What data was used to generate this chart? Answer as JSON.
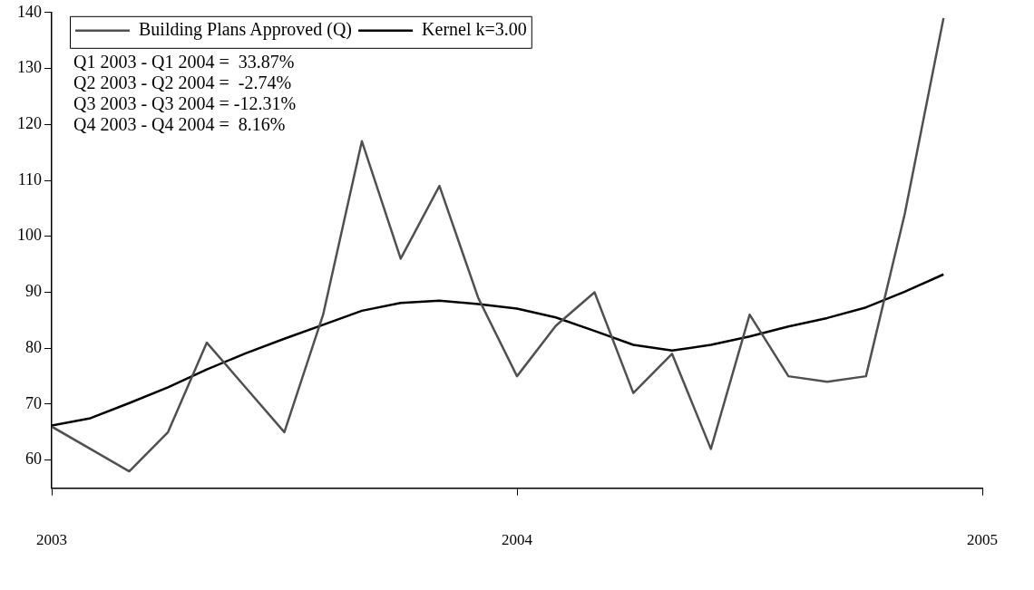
{
  "chart_data": {
    "type": "line",
    "x": [
      "2003-01",
      "2003-02",
      "2003-03",
      "2003-04",
      "2003-05",
      "2003-06",
      "2003-07",
      "2003-08",
      "2003-09",
      "2003-10",
      "2003-11",
      "2003-12",
      "2004-01",
      "2004-02",
      "2004-03",
      "2004-04",
      "2004-05",
      "2004-06",
      "2004-07",
      "2004-08",
      "2004-09",
      "2004-10",
      "2004-11",
      "2004-12"
    ],
    "series": [
      {
        "name": "Building Plans Approved (Q)",
        "color": "#505050",
        "values": [
          66,
          62,
          58,
          65,
          81,
          73,
          65,
          86,
          117,
          96,
          109,
          89,
          75,
          84,
          90,
          72,
          79,
          62,
          86,
          75,
          74,
          75,
          104,
          139
        ]
      },
      {
        "name": "Kernel k=3.00",
        "color": "#000000",
        "values": [
          66.2,
          67.5,
          70.2,
          73,
          76.2,
          79.1,
          81.7,
          84.2,
          86.7,
          88.1,
          88.5,
          87.9,
          87.1,
          85.5,
          83.1,
          80.6,
          79.6,
          80.6,
          82.1,
          83.9,
          85.4,
          87.3,
          90.1,
          93.2
        ]
      }
    ],
    "xlim": [
      "2003",
      "2005"
    ],
    "xticks": [
      "2003",
      "2004",
      "2005"
    ],
    "ylim": [
      55,
      140
    ],
    "yticks": [
      60,
      70,
      80,
      90,
      100,
      110,
      120,
      130,
      140
    ],
    "grid": false,
    "legend": "top left",
    "marker": "none",
    "line_style": "solid",
    "annotations": [
      "Q1 2003 - Q1 2004 =  33.87%",
      "Q2 2003 - Q2 2004 =  -2.74%",
      "Q3 2003 - Q3 2004 = -12.31%",
      "Q4 2003 - Q4 2004 =  8.16%"
    ]
  }
}
